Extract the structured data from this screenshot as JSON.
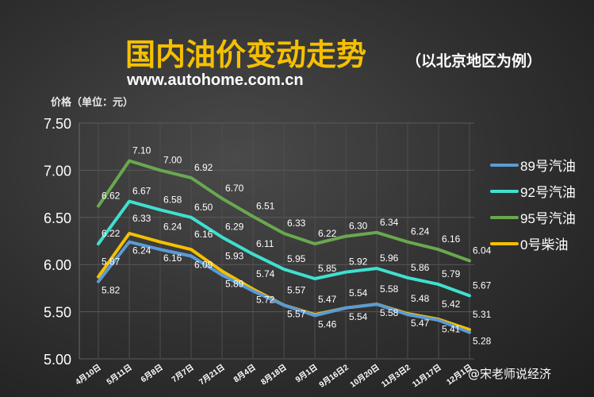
{
  "header": {
    "title": "国内油价变动走势",
    "subtitle": "（以北京地区为例）",
    "url": "www.autohome.com.cn",
    "y_unit": "价格（单位：元）"
  },
  "watermark": "@宋老师说经济",
  "colors": {
    "series_89": "#5b9bd5",
    "series_92": "#3fe0d0",
    "series_95": "#6aa84f",
    "series_0": "#f5c000",
    "title": "#f5c000"
  },
  "chart_data": {
    "type": "line",
    "title": "国内油价变动走势",
    "subtitle": "（以北京地区为例）",
    "xlabel": "",
    "ylabel": "价格（单位：元）",
    "ylim": [
      5.0,
      7.5
    ],
    "yticks": [
      5.0,
      5.5,
      6.0,
      6.5,
      7.0,
      7.5
    ],
    "ytick_labels": [
      "5.00",
      "5.50",
      "6.00",
      "6.50",
      "7.00",
      "7.50"
    ],
    "grid": true,
    "legend_position": "right",
    "categories": [
      "4月10日",
      "5月11日",
      "6月8日",
      "7月7日",
      "7月21日",
      "8月4日",
      "8月18日",
      "9月1日",
      "9月16日2",
      "10月20日",
      "11月3日2",
      "11月17日",
      "12月1日"
    ],
    "series": [
      {
        "name": "89号汽油",
        "color": "#5b9bd5",
        "values": [
          5.82,
          6.24,
          6.16,
          6.09,
          5.89,
          5.72,
          5.57,
          5.46,
          5.54,
          5.58,
          5.47,
          5.41,
          5.28
        ],
        "labels": [
          "5.82",
          "6.24",
          "6.16",
          "6.09",
          "5.89",
          "5.72",
          "5.57",
          "5.46",
          "5.54",
          "5.58",
          "5.47",
          "5.41",
          "5.28"
        ]
      },
      {
        "name": "92号汽油",
        "color": "#3fe0d0",
        "values": [
          6.22,
          6.67,
          6.58,
          6.5,
          6.29,
          6.11,
          5.95,
          5.85,
          5.92,
          5.96,
          5.86,
          5.79,
          5.67
        ],
        "labels": [
          "6.22",
          "6.67",
          "6.58",
          "6.50",
          "6.29",
          "6.11",
          "5.95",
          "5.85",
          "5.92",
          "5.96",
          "5.86",
          "5.79",
          "5.67"
        ]
      },
      {
        "name": "95号汽油",
        "color": "#6aa84f",
        "values": [
          6.62,
          7.1,
          7.0,
          6.92,
          6.7,
          6.51,
          6.33,
          6.22,
          6.3,
          6.34,
          6.24,
          6.16,
          6.04
        ],
        "labels": [
          "6.62",
          "7.10",
          "7.00",
          "6.92",
          "6.70",
          "6.51",
          "6.33",
          "6.22",
          "6.30",
          "6.34",
          "6.24",
          "6.16",
          "6.04"
        ]
      },
      {
        "name": "0号柴油",
        "color": "#f5c000",
        "values": [
          5.87,
          6.33,
          6.24,
          6.16,
          5.93,
          5.74,
          5.57,
          5.47,
          5.54,
          5.58,
          5.48,
          5.42,
          5.31
        ],
        "labels": [
          "5.87",
          "6.33",
          "6.24",
          "6.16",
          "5.93",
          "5.74",
          "5.57",
          "5.47",
          "5.54",
          "5.58",
          "5.48",
          "5.42",
          "5.31"
        ]
      }
    ]
  }
}
